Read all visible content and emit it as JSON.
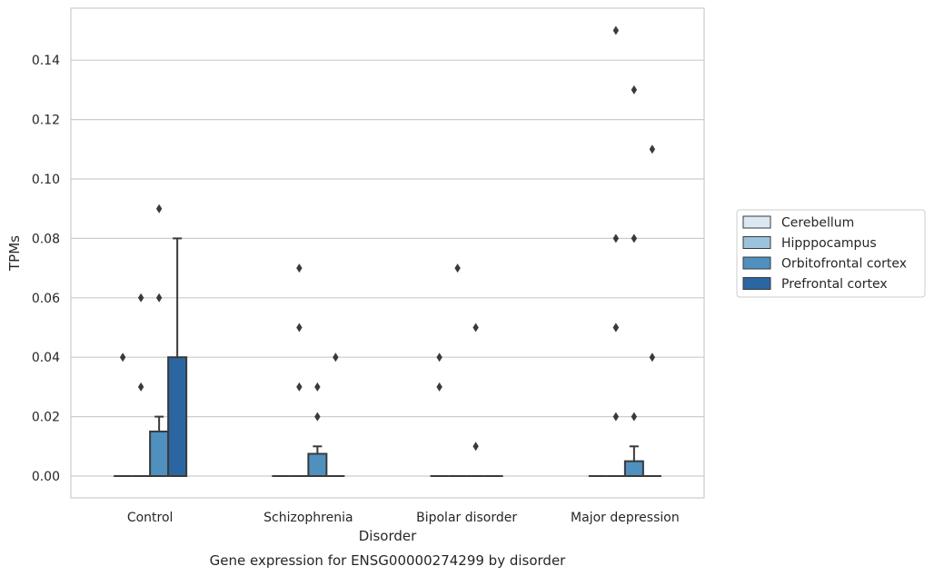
{
  "chart_data": {
    "type": "box",
    "xlabel": "Disorder",
    "ylabel": "TPMs",
    "caption": "Gene expression for ENSG00000274299 by disorder",
    "ylim": [
      -0.007,
      0.16
    ],
    "yticks": [
      0.0,
      0.02,
      0.04,
      0.06,
      0.08,
      0.1,
      0.12,
      0.14
    ],
    "ytick_labels": [
      "0.00",
      "0.02",
      "0.04",
      "0.06",
      "0.08",
      "0.10",
      "0.12",
      "0.14"
    ],
    "grid": "horizontal",
    "legend_position": "right",
    "categories": [
      "Control",
      "Schizophrenia",
      "Bipolar disorder",
      "Major depression"
    ],
    "series": [
      {
        "name": "Cerebellum",
        "color": "#dbe8f4",
        "boxes": [
          {
            "q1": 0,
            "median": 0,
            "q3": 0,
            "whisker_low": 0,
            "whisker_high": 0,
            "outliers": [
              0.04
            ]
          },
          {
            "q1": 0,
            "median": 0,
            "q3": 0,
            "whisker_low": 0,
            "whisker_high": 0,
            "outliers": []
          },
          {
            "q1": 0,
            "median": 0,
            "q3": 0,
            "whisker_low": 0,
            "whisker_high": 0,
            "outliers": [
              0.03,
              0.04
            ]
          },
          {
            "q1": 0,
            "median": 0,
            "q3": 0,
            "whisker_low": 0,
            "whisker_high": 0,
            "outliers": []
          }
        ]
      },
      {
        "name": "Hipppocampus",
        "color": "#9cc3dc",
        "boxes": [
          {
            "q1": 0,
            "median": 0,
            "q3": 0,
            "whisker_low": 0,
            "whisker_high": 0,
            "outliers": [
              0.03,
              0.06
            ]
          },
          {
            "q1": 0,
            "median": 0,
            "q3": 0,
            "whisker_low": 0,
            "whisker_high": 0,
            "outliers": [
              0.03,
              0.05,
              0.07
            ]
          },
          {
            "q1": 0,
            "median": 0,
            "q3": 0,
            "whisker_low": 0,
            "whisker_high": 0,
            "outliers": [
              0.07
            ]
          },
          {
            "q1": 0,
            "median": 0,
            "q3": 0,
            "whisker_low": 0,
            "whisker_high": 0,
            "outliers": [
              0.02,
              0.05
            ]
          }
        ]
      },
      {
        "name": "Orbitofrontal cortex",
        "color": "#4f90bf",
        "boxes": [
          {
            "q1": 0,
            "median": 0,
            "q3": 0.015,
            "whisker_low": 0,
            "whisker_high": 0.02,
            "outliers": [
              0.06,
              0.09
            ]
          },
          {
            "q1": 0,
            "median": 0,
            "q3": 0.0075,
            "whisker_low": 0,
            "whisker_high": 0.01,
            "outliers": [
              0.02,
              0.03
            ]
          },
          {
            "q1": 0,
            "median": 0,
            "q3": 0,
            "whisker_low": 0,
            "whisker_high": 0,
            "outliers": [
              0.01,
              0.05
            ]
          },
          {
            "q1": 0,
            "median": 0,
            "q3": 0.005,
            "whisker_low": 0,
            "whisker_high": 0.01,
            "outliers": [
              0.02,
              0.08,
              0.13
            ]
          }
        ]
      },
      {
        "name": "Prefrontal cortex",
        "color": "#2b66a3",
        "boxes": [
          {
            "q1": 0,
            "median": 0,
            "q3": 0.04,
            "whisker_low": 0,
            "whisker_high": 0.08,
            "outliers": []
          },
          {
            "q1": 0,
            "median": 0,
            "q3": 0,
            "whisker_low": 0,
            "whisker_high": 0,
            "outliers": [
              0.04
            ]
          },
          {
            "q1": 0,
            "median": 0,
            "q3": 0,
            "whisker_low": 0,
            "whisker_high": 0,
            "outliers": []
          },
          {
            "q1": 0,
            "median": 0,
            "q3": 0,
            "whisker_low": 0,
            "whisker_high": 0,
            "outliers": [
              0.04,
              0.11
            ]
          }
        ]
      }
    ],
    "extra_outliers": [
      {
        "category": "Major depression",
        "series": "Hipppocampus",
        "values": [
          0.05,
          0.08,
          0.15
        ]
      }
    ]
  }
}
